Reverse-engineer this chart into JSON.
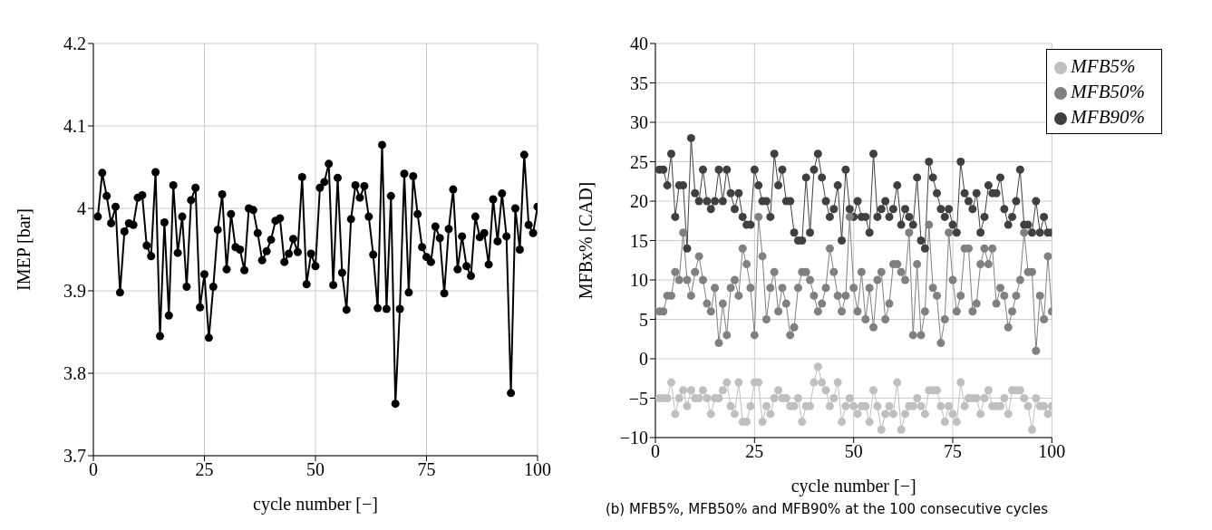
{
  "chart_data": [
    {
      "type": "line",
      "xlabel": "cycle number [−]",
      "ylabel": "IMEP [bar]",
      "xlim": [
        0,
        100
      ],
      "xticks": [
        0,
        25,
        50,
        75,
        100
      ],
      "ylim": [
        3.7,
        4.2
      ],
      "yticks": [
        3.7,
        3.8,
        3.9,
        4,
        4.1,
        4.2
      ],
      "grid": true,
      "legend": false,
      "marker": "circle",
      "line_style": "solid",
      "x": [
        1,
        2,
        3,
        4,
        5,
        6,
        7,
        8,
        9,
        10,
        11,
        12,
        13,
        14,
        15,
        16,
        17,
        18,
        19,
        20,
        21,
        22,
        23,
        24,
        25,
        26,
        27,
        28,
        29,
        30,
        31,
        32,
        33,
        34,
        35,
        36,
        37,
        38,
        39,
        40,
        41,
        42,
        43,
        44,
        45,
        46,
        47,
        48,
        49,
        50,
        51,
        52,
        53,
        54,
        55,
        56,
        57,
        58,
        59,
        60,
        61,
        62,
        63,
        64,
        65,
        66,
        67,
        68,
        69,
        70,
        71,
        72,
        73,
        74,
        75,
        76,
        77,
        78,
        79,
        80,
        81,
        82,
        83,
        84,
        85,
        86,
        87,
        88,
        89,
        90,
        91,
        92,
        93,
        94,
        95,
        96,
        97,
        98,
        99,
        100
      ],
      "series": [
        {
          "color": "#000000",
          "values": [
            3.99,
            4.043,
            4.015,
            3.982,
            4.002,
            3.898,
            3.972,
            3.982,
            3.98,
            4.013,
            4.016,
            3.955,
            3.942,
            4.044,
            3.845,
            3.983,
            3.87,
            4.028,
            3.946,
            3.99,
            3.905,
            4.01,
            4.025,
            3.88,
            3.92,
            3.843,
            3.905,
            3.974,
            4.017,
            3.926,
            3.993,
            3.953,
            3.95,
            3.925,
            4.0,
            3.998,
            3.97,
            3.937,
            3.948,
            3.962,
            3.985,
            3.988,
            3.935,
            3.945,
            3.963,
            3.947,
            4.038,
            3.908,
            3.945,
            3.93,
            4.025,
            4.032,
            4.054,
            3.907,
            4.037,
            3.922,
            3.877,
            3.987,
            4.028,
            4.013,
            4.027,
            3.99,
            3.944,
            3.879,
            4.077,
            3.878,
            4.015,
            3.763,
            3.878,
            4.042,
            3.898,
            4.039,
            3.993,
            3.953,
            3.941,
            3.935,
            3.978,
            3.964,
            3.897,
            3.975,
            4.023,
            3.926,
            3.966,
            3.93,
            3.918,
            3.99,
            3.965,
            3.97,
            3.932,
            4.011,
            3.96,
            4.018,
            3.966,
            3.776,
            4.0,
            3.95,
            4.065,
            3.98,
            3.97,
            4.002
          ]
        }
      ]
    },
    {
      "type": "line",
      "xlabel": "cycle number [−]",
      "ylabel": "MFBx% [CAD]",
      "xlim": [
        0,
        100
      ],
      "xticks": [
        0,
        25,
        50,
        75,
        100
      ],
      "ylim": [
        -10,
        40
      ],
      "yticks": [
        -10,
        -5,
        0,
        5,
        10,
        15,
        20,
        25,
        30,
        35,
        40
      ],
      "grid": true,
      "legend": "top right",
      "marker": "circle",
      "line_style": "solid",
      "annotations": [
        "(b) MFB5%, MFB50% and MFB90% at the 100 consecutive cycles"
      ],
      "x": [
        1,
        2,
        3,
        4,
        5,
        6,
        7,
        8,
        9,
        10,
        11,
        12,
        13,
        14,
        15,
        16,
        17,
        18,
        19,
        20,
        21,
        22,
        23,
        24,
        25,
        26,
        27,
        28,
        29,
        30,
        31,
        32,
        33,
        34,
        35,
        36,
        37,
        38,
        39,
        40,
        41,
        42,
        43,
        44,
        45,
        46,
        47,
        48,
        49,
        50,
        51,
        52,
        53,
        54,
        55,
        56,
        57,
        58,
        59,
        60,
        61,
        62,
        63,
        64,
        65,
        66,
        67,
        68,
        69,
        70,
        71,
        72,
        73,
        74,
        75,
        76,
        77,
        78,
        79,
        80,
        81,
        82,
        83,
        84,
        85,
        86,
        87,
        88,
        89,
        90,
        91,
        92,
        93,
        94,
        95,
        96,
        97,
        98,
        99,
        100
      ],
      "series": [
        {
          "name": "MFB90%",
          "color": "#404040",
          "values": [
            24,
            24,
            22,
            26,
            18,
            22,
            22,
            14,
            28,
            21,
            20,
            24,
            20,
            19,
            20,
            24,
            20,
            24,
            21,
            19,
            21,
            18,
            17,
            17,
            24,
            22,
            20,
            20,
            18,
            26,
            22,
            24,
            20,
            20,
            16,
            15,
            15,
            23,
            16,
            24,
            26,
            23,
            20,
            18,
            19,
            22,
            15,
            24,
            19,
            18,
            20,
            18,
            18,
            16,
            26,
            18,
            19,
            20,
            18,
            19,
            22,
            17,
            19,
            18,
            17,
            23,
            15,
            14,
            25,
            23,
            21,
            19,
            18,
            19,
            17,
            16,
            25,
            21,
            20,
            19,
            21,
            16,
            18,
            22,
            21,
            21,
            23,
            19,
            17,
            18,
            20,
            24,
            17,
            17,
            16,
            20,
            16,
            18,
            16,
            16
          ]
        },
        {
          "name": "MFB50%",
          "color": "#808080",
          "values": [
            6,
            6,
            8,
            8,
            11,
            10,
            16,
            10,
            8,
            11,
            13,
            10,
            7,
            6,
            9,
            2,
            7,
            3,
            9,
            10,
            8,
            14,
            12,
            9,
            3,
            18,
            13,
            5,
            9,
            11,
            6,
            9,
            7,
            3,
            4,
            9,
            11,
            11,
            10,
            8,
            6,
            7,
            9,
            14,
            11,
            8,
            6,
            8,
            18,
            9,
            6,
            11,
            5,
            9,
            4,
            10,
            11,
            5,
            7,
            12,
            12,
            11,
            10,
            16,
            3,
            12,
            3,
            6,
            17,
            9,
            8,
            2,
            5,
            16,
            10,
            6,
            8,
            14,
            14,
            6,
            7,
            12,
            14,
            12,
            14,
            7,
            9,
            8,
            4,
            6,
            8,
            10,
            16,
            11,
            11,
            1,
            8,
            5,
            13,
            6
          ]
        },
        {
          "name": "MFB5%",
          "color": "#bfbfbf",
          "values": [
            -5,
            -5,
            -5,
            -3,
            -7,
            -5,
            -4,
            -6,
            -4,
            -5,
            -5,
            -4,
            -5,
            -7,
            -5,
            -5,
            -4,
            -3,
            -6,
            -7,
            -3,
            -8,
            -8,
            -6,
            -3,
            -3,
            -8,
            -6,
            -7,
            -5,
            -4,
            -5,
            -5,
            -6,
            -6,
            -5,
            -8,
            -6,
            -6,
            -3,
            -1,
            -3,
            -4,
            -6,
            -5,
            -3,
            -8,
            -6,
            -5,
            -6,
            -7,
            -6,
            -6,
            -8,
            -4,
            -6,
            -9,
            -7,
            -6,
            -7,
            -3,
            -9,
            -7,
            -6,
            -6,
            -5,
            -6,
            -7,
            -4,
            -4,
            -4,
            -6,
            -8,
            -6,
            -7,
            -8,
            -3,
            -6,
            -5,
            -5,
            -5,
            -7,
            -5,
            -4,
            -6,
            -6,
            -6,
            -5,
            -7,
            -4,
            -4,
            -4,
            -5,
            -6,
            -9,
            -5,
            -6,
            -6,
            -7,
            -6
          ]
        }
      ]
    }
  ]
}
